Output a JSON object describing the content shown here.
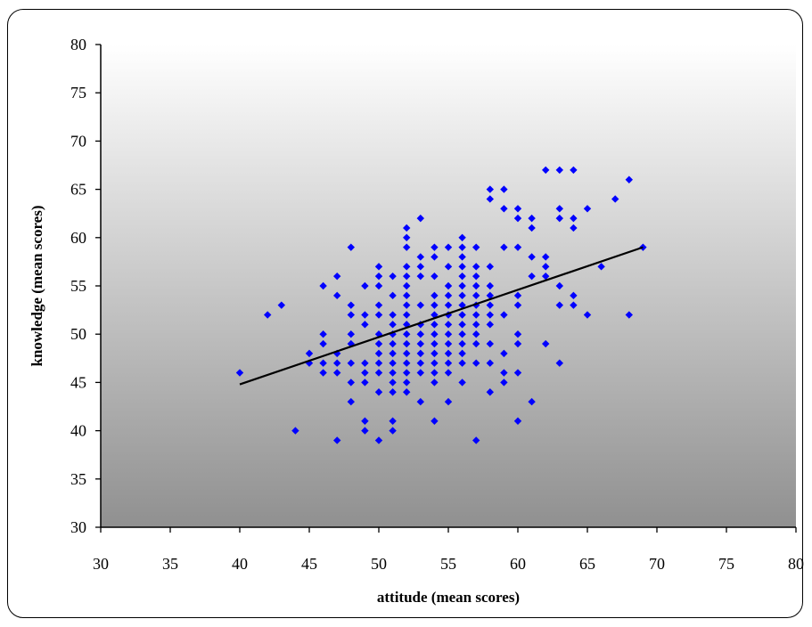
{
  "chart_data": {
    "type": "scatter",
    "title": "",
    "xlabel": "attitude (mean scores)",
    "ylabel": "knowledge (mean scores)",
    "xlim": [
      30,
      80
    ],
    "ylim": [
      30,
      80
    ],
    "x_ticks": [
      30,
      35,
      40,
      45,
      50,
      55,
      60,
      65,
      70,
      75,
      80
    ],
    "y_ticks": [
      30,
      35,
      40,
      45,
      50,
      55,
      60,
      65,
      70,
      75,
      80
    ],
    "grid": false,
    "legend": "none",
    "marker": "diamond",
    "colors": {
      "points": "#0000ff",
      "trendline": "#000000",
      "plot_gradient_top": "#ffffff",
      "plot_gradient_bottom": "#909090"
    },
    "series": [
      {
        "points": [
          [
            40,
            46
          ],
          [
            42,
            52
          ],
          [
            43,
            53
          ],
          [
            44,
            40
          ],
          [
            45,
            47
          ],
          [
            45,
            48
          ],
          [
            46,
            55
          ],
          [
            46,
            50
          ],
          [
            46,
            49
          ],
          [
            46,
            47
          ],
          [
            46,
            46
          ],
          [
            47,
            56
          ],
          [
            47,
            54
          ],
          [
            47,
            48
          ],
          [
            47,
            47
          ],
          [
            47,
            46
          ],
          [
            47,
            39
          ],
          [
            48,
            59
          ],
          [
            48,
            53
          ],
          [
            48,
            52
          ],
          [
            48,
            50
          ],
          [
            48,
            49
          ],
          [
            48,
            47
          ],
          [
            48,
            45
          ],
          [
            48,
            43
          ],
          [
            49,
            55
          ],
          [
            49,
            52
          ],
          [
            49,
            51
          ],
          [
            49,
            47
          ],
          [
            49,
            46
          ],
          [
            49,
            45
          ],
          [
            49,
            41
          ],
          [
            49,
            40
          ],
          [
            50,
            57
          ],
          [
            50,
            56
          ],
          [
            50,
            55
          ],
          [
            50,
            53
          ],
          [
            50,
            52
          ],
          [
            50,
            50
          ],
          [
            50,
            49
          ],
          [
            50,
            48
          ],
          [
            50,
            47
          ],
          [
            50,
            46
          ],
          [
            50,
            44
          ],
          [
            50,
            39
          ],
          [
            51,
            56
          ],
          [
            51,
            54
          ],
          [
            51,
            52
          ],
          [
            51,
            51
          ],
          [
            51,
            50
          ],
          [
            51,
            49
          ],
          [
            51,
            48
          ],
          [
            51,
            47
          ],
          [
            51,
            46
          ],
          [
            51,
            45
          ],
          [
            51,
            44
          ],
          [
            51,
            41
          ],
          [
            51,
            40
          ],
          [
            52,
            61
          ],
          [
            52,
            60
          ],
          [
            52,
            59
          ],
          [
            52,
            57
          ],
          [
            52,
            56
          ],
          [
            52,
            55
          ],
          [
            52,
            54
          ],
          [
            52,
            53
          ],
          [
            52,
            52
          ],
          [
            52,
            51
          ],
          [
            52,
            50
          ],
          [
            52,
            49
          ],
          [
            52,
            48
          ],
          [
            52,
            47
          ],
          [
            52,
            46
          ],
          [
            52,
            45
          ],
          [
            52,
            44
          ],
          [
            53,
            62
          ],
          [
            53,
            58
          ],
          [
            53,
            57
          ],
          [
            53,
            56
          ],
          [
            53,
            53
          ],
          [
            53,
            51
          ],
          [
            53,
            50
          ],
          [
            53,
            49
          ],
          [
            53,
            48
          ],
          [
            53,
            47
          ],
          [
            53,
            46
          ],
          [
            53,
            43
          ],
          [
            54,
            59
          ],
          [
            54,
            58
          ],
          [
            54,
            56
          ],
          [
            54,
            54
          ],
          [
            54,
            53
          ],
          [
            54,
            52
          ],
          [
            54,
            51
          ],
          [
            54,
            50
          ],
          [
            54,
            49
          ],
          [
            54,
            48
          ],
          [
            54,
            47
          ],
          [
            54,
            46
          ],
          [
            54,
            45
          ],
          [
            54,
            41
          ],
          [
            55,
            59
          ],
          [
            55,
            57
          ],
          [
            55,
            55
          ],
          [
            55,
            54
          ],
          [
            55,
            53
          ],
          [
            55,
            52
          ],
          [
            55,
            51
          ],
          [
            55,
            50
          ],
          [
            55,
            49
          ],
          [
            55,
            48
          ],
          [
            55,
            47
          ],
          [
            55,
            46
          ],
          [
            55,
            43
          ],
          [
            56,
            60
          ],
          [
            56,
            59
          ],
          [
            56,
            58
          ],
          [
            56,
            57
          ],
          [
            56,
            56
          ],
          [
            56,
            55
          ],
          [
            56,
            54
          ],
          [
            56,
            53
          ],
          [
            56,
            52
          ],
          [
            56,
            51
          ],
          [
            56,
            50
          ],
          [
            56,
            49
          ],
          [
            56,
            48
          ],
          [
            56,
            47
          ],
          [
            56,
            45
          ],
          [
            57,
            59
          ],
          [
            57,
            57
          ],
          [
            57,
            56
          ],
          [
            57,
            55
          ],
          [
            57,
            54
          ],
          [
            57,
            53
          ],
          [
            57,
            52
          ],
          [
            57,
            51
          ],
          [
            57,
            50
          ],
          [
            57,
            49
          ],
          [
            57,
            47
          ],
          [
            57,
            39
          ],
          [
            58,
            65
          ],
          [
            58,
            64
          ],
          [
            58,
            57
          ],
          [
            58,
            55
          ],
          [
            58,
            54
          ],
          [
            58,
            53
          ],
          [
            58,
            52
          ],
          [
            58,
            51
          ],
          [
            58,
            49
          ],
          [
            58,
            47
          ],
          [
            58,
            44
          ],
          [
            59,
            65
          ],
          [
            59,
            63
          ],
          [
            59,
            59
          ],
          [
            59,
            52
          ],
          [
            59,
            48
          ],
          [
            59,
            46
          ],
          [
            59,
            45
          ],
          [
            60,
            63
          ],
          [
            60,
            62
          ],
          [
            60,
            59
          ],
          [
            60,
            54
          ],
          [
            60,
            53
          ],
          [
            60,
            50
          ],
          [
            60,
            49
          ],
          [
            60,
            46
          ],
          [
            60,
            41
          ],
          [
            61,
            62
          ],
          [
            61,
            61
          ],
          [
            61,
            58
          ],
          [
            61,
            56
          ],
          [
            61,
            43
          ],
          [
            62,
            67
          ],
          [
            62,
            58
          ],
          [
            62,
            57
          ],
          [
            62,
            56
          ],
          [
            62,
            49
          ],
          [
            63,
            67
          ],
          [
            63,
            63
          ],
          [
            63,
            62
          ],
          [
            63,
            55
          ],
          [
            63,
            53
          ],
          [
            63,
            47
          ],
          [
            64,
            67
          ],
          [
            64,
            62
          ],
          [
            64,
            61
          ],
          [
            64,
            54
          ],
          [
            64,
            53
          ],
          [
            65,
            63
          ],
          [
            65,
            52
          ],
          [
            66,
            57
          ],
          [
            67,
            64
          ],
          [
            68,
            66
          ],
          [
            68,
            52
          ],
          [
            69,
            59
          ]
        ]
      }
    ],
    "trendline": {
      "type": "linear",
      "from": [
        40,
        44.8
      ],
      "to": [
        69,
        59.0
      ]
    }
  }
}
